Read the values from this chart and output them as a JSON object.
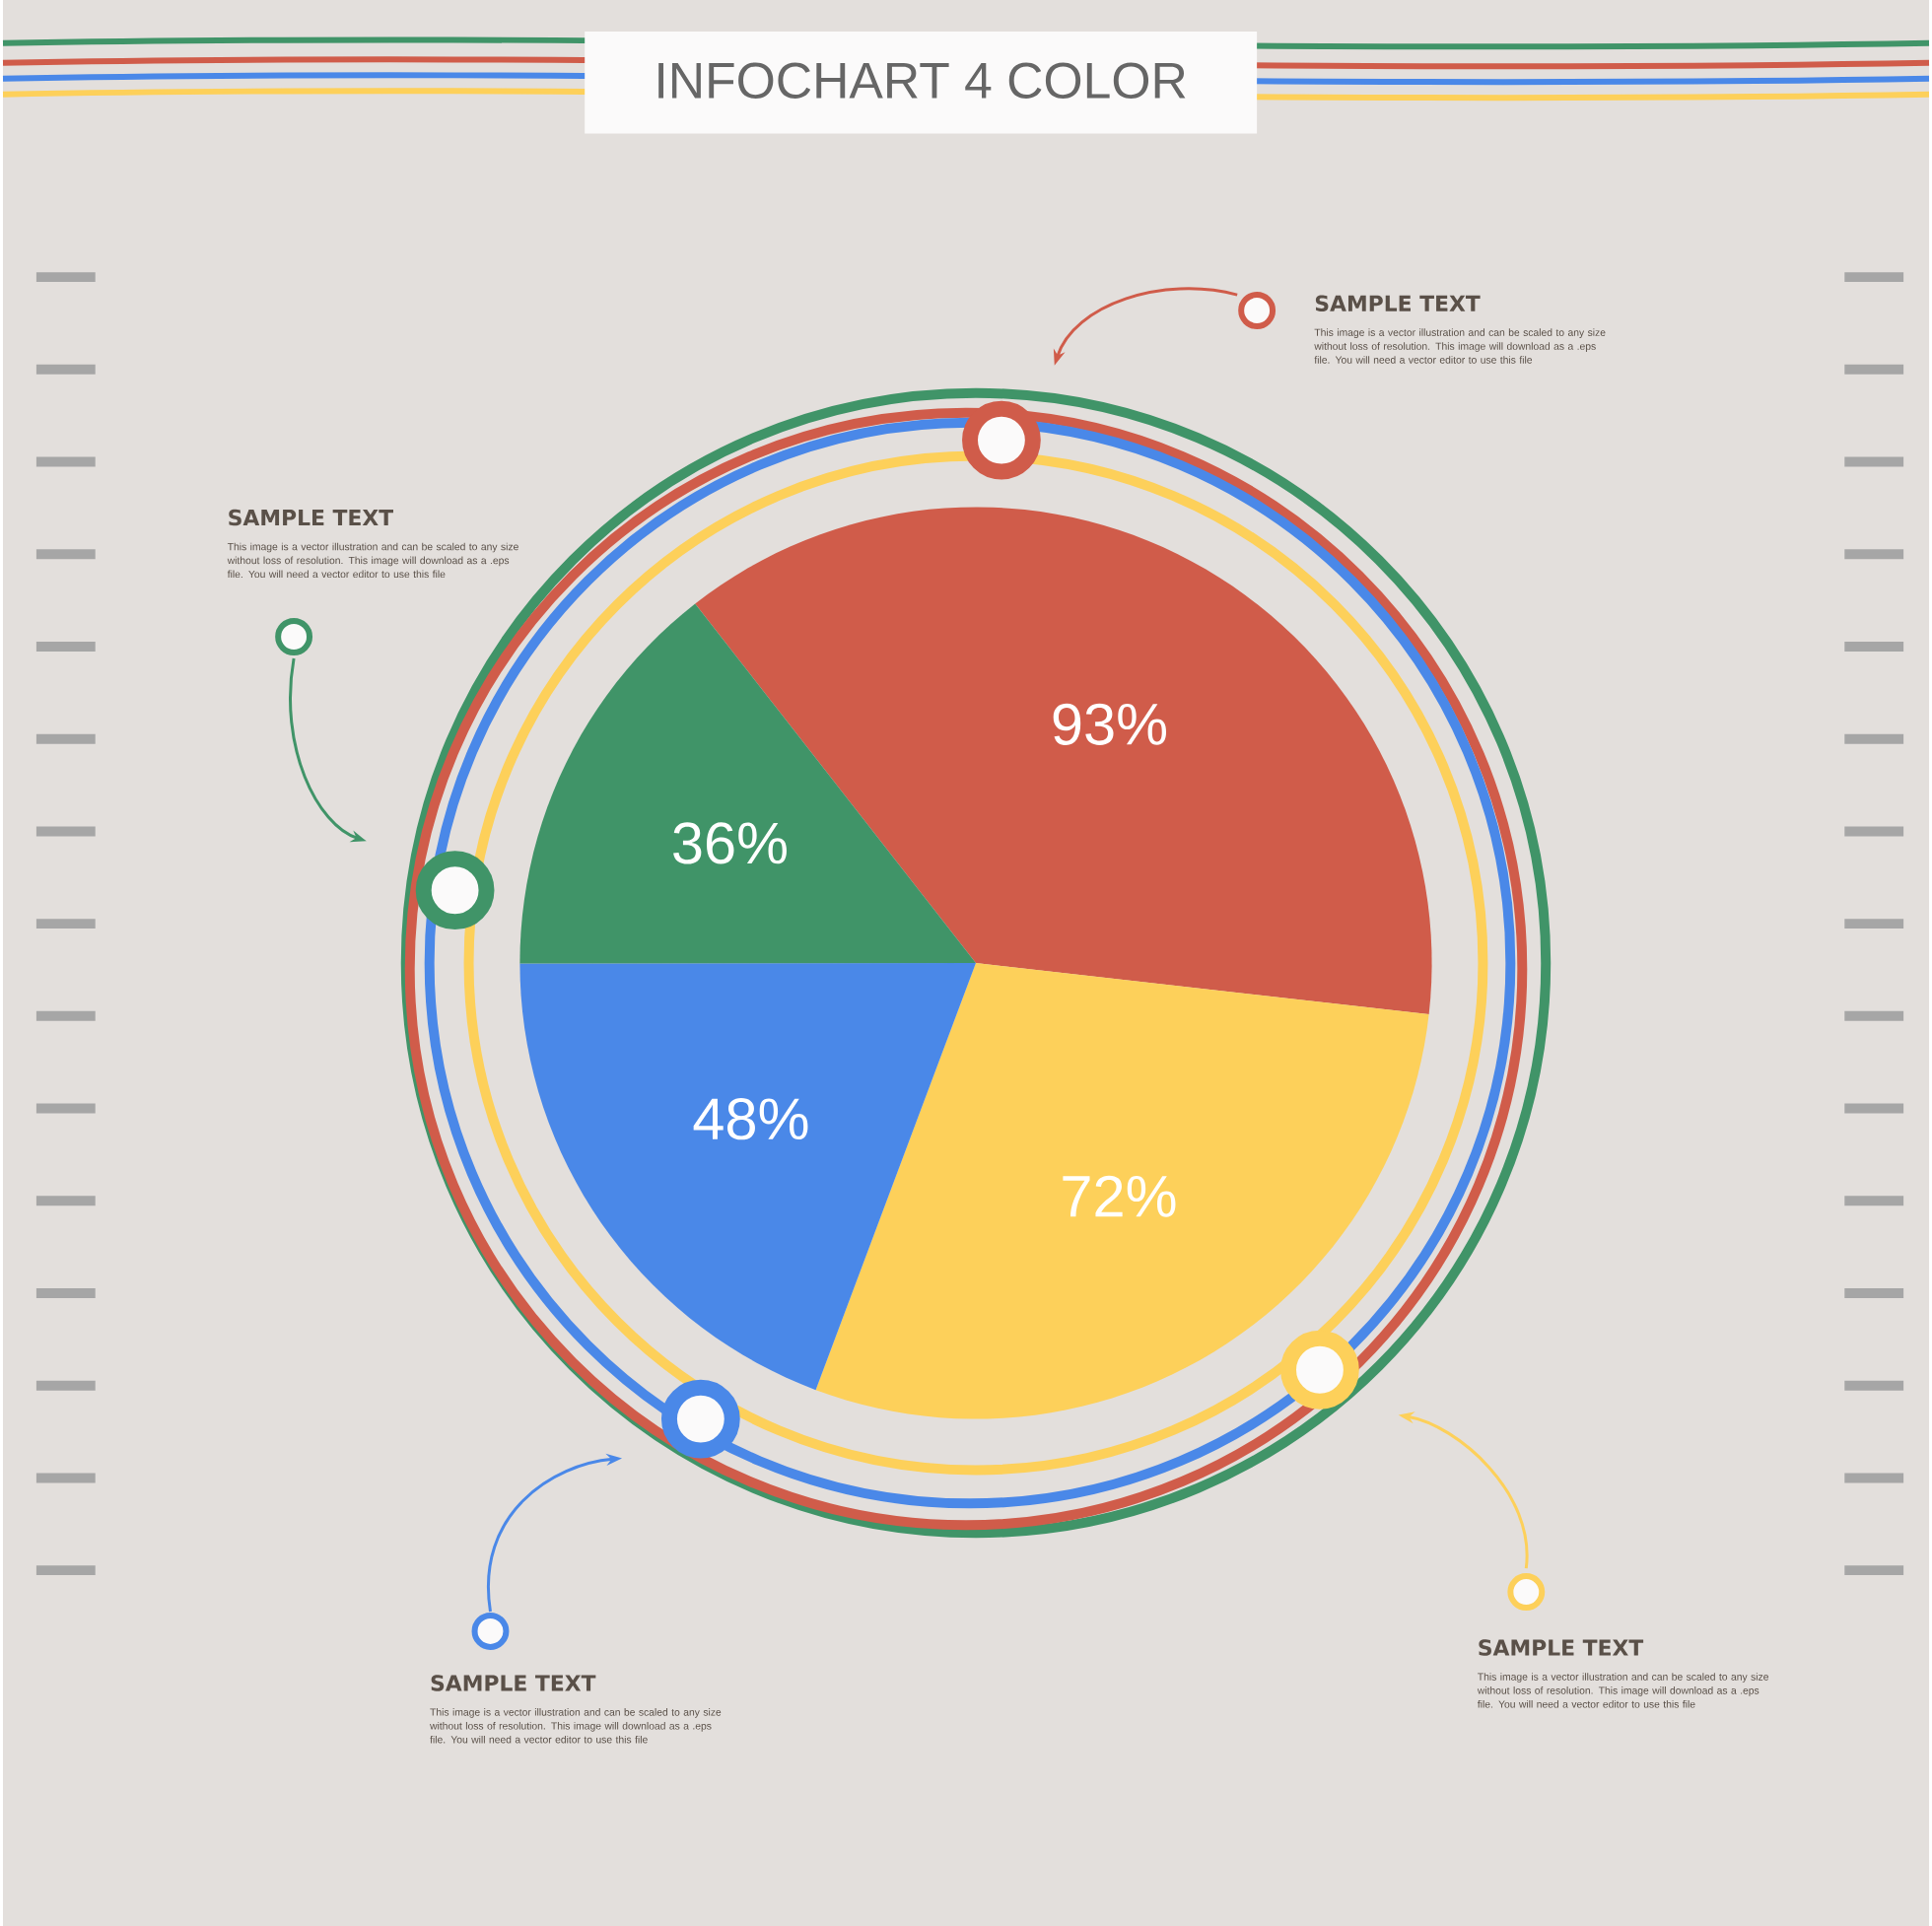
{
  "chart_data": {
    "type": "pie",
    "title": "INFOCHART 4 COLOR",
    "categories": [
      null,
      null,
      null,
      null
    ],
    "values": [
      93,
      72,
      48,
      36
    ],
    "value_labels": [
      "93%",
      "72%",
      "48%",
      "36%"
    ],
    "colors": [
      "#d05c4a",
      "#fdd05a",
      "#4a88e8",
      "#409468"
    ],
    "annotations": [
      "SAMPLE TEXT",
      "This image is a vector illustration and can be scaled to any size without loss of resolution. This image will download as a .eps file. You will need a vector editor to use this file",
      "SAMPLE TEXT",
      "This image is a vector illustration and can be scaled to any size without loss of resolution. This image will download as a .eps file. You will need a vector editor to use this file",
      "SAMPLE TEXT",
      "This image is a vector illustration and can be scaled to any size without loss of resolution. This image will download as a .eps file. You will need a vector editor to use this file",
      "SAMPLE TEXT",
      "This image is a vector illustration and can be scaled to any size without loss of resolution. This image will download as a .eps file. You will need a vector editor to use this file"
    ]
  }
}
